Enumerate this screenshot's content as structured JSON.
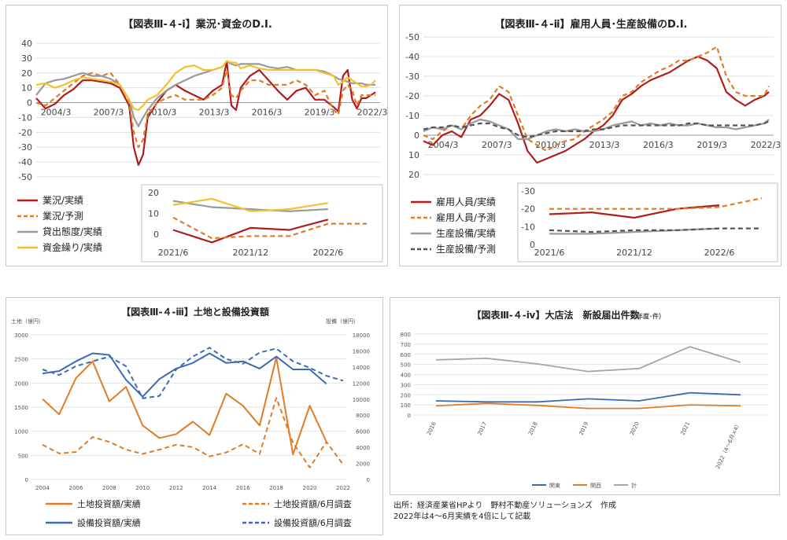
{
  "source_note": {
    "line1": "出所：経済産業省HPより　野村不動産ソリューションズ　作成",
    "line2": "2022年は4～6月実績を4倍にして記載"
  },
  "chart_data": [
    {
      "id": "c1",
      "type": "line",
      "title": "【図表Ⅲ-４-ⅰ】業況･資金のD.I.",
      "x_ticks": [
        "2004/3",
        "2007/3",
        "2010/3",
        "2013/3",
        "2016/3",
        "2019/3",
        "2022/3"
      ],
      "y_ticks": [
        "40",
        "30",
        "20",
        "10",
        "0",
        "-10",
        "-20",
        "-30",
        "-40",
        "-50"
      ],
      "ylim": [
        -50,
        40
      ],
      "x": [
        2004.0,
        2004.5,
        2005.0,
        2005.5,
        2006.0,
        2006.5,
        2007.0,
        2007.5,
        2008.0,
        2008.5,
        2009.0,
        2009.25,
        2009.5,
        2009.75,
        2010.0,
        2010.5,
        2011.0,
        2011.5,
        2012.0,
        2012.5,
        2013.0,
        2013.5,
        2014.0,
        2014.25,
        2014.5,
        2014.75,
        2015.0,
        2015.5,
        2016.0,
        2016.5,
        2017.0,
        2017.5,
        2018.0,
        2018.5,
        2019.0,
        2019.5,
        2020.0,
        2020.25,
        2020.5,
        2020.75,
        2021.0,
        2021.25,
        2021.5,
        2021.75,
        2022.0,
        2022.25
      ],
      "series": [
        {
          "name": "業況/実績",
          "color": "#b01c1c",
          "dash": "",
          "values": [
            3,
            -4,
            -1,
            5,
            9,
            15,
            15,
            14,
            13,
            10,
            -2,
            -30,
            -42,
            -35,
            -10,
            0,
            8,
            12,
            8,
            5,
            2,
            8,
            12,
            28,
            -2,
            -5,
            10,
            18,
            22,
            15,
            8,
            2,
            8,
            10,
            2,
            2,
            -3,
            -6,
            18,
            22,
            2,
            -4,
            3,
            3,
            5,
            7
          ]
        },
        {
          "name": "業況/予測",
          "color": "#e07b27",
          "dash": "6,4",
          "values": [
            0,
            -2,
            3,
            8,
            13,
            18,
            20,
            18,
            20,
            12,
            0,
            -20,
            -30,
            -25,
            -8,
            0,
            3,
            5,
            2,
            2,
            2,
            5,
            10,
            22,
            5,
            3,
            8,
            15,
            15,
            12,
            12,
            12,
            15,
            12,
            5,
            8,
            -5,
            -8,
            8,
            12,
            8,
            -2,
            5,
            5,
            5,
            5
          ]
        },
        {
          "name": "貸出態度/実績",
          "color": "#9a9a9a",
          "dash": "",
          "values": [
            5,
            13,
            15,
            16,
            18,
            20,
            18,
            18,
            16,
            12,
            2,
            -10,
            -16,
            -10,
            -5,
            3,
            8,
            12,
            15,
            18,
            20,
            22,
            24,
            28,
            26,
            25,
            26,
            26,
            26,
            24,
            23,
            24,
            22,
            22,
            22,
            21,
            18,
            16,
            15,
            14,
            13,
            13,
            13,
            12,
            12,
            12
          ]
        },
        {
          "name": "資金繰り/実績",
          "color": "#f2c12e",
          "dash": "",
          "values": [
            12,
            13,
            10,
            12,
            15,
            17,
            16,
            15,
            14,
            12,
            2,
            -4,
            -5,
            -2,
            2,
            5,
            12,
            20,
            24,
            25,
            22,
            22,
            24,
            28,
            27,
            27,
            23,
            25,
            23,
            22,
            22,
            22,
            22,
            22,
            22,
            20,
            18,
            12,
            14,
            17,
            15,
            13,
            11,
            11,
            12,
            15
          ]
        }
      ],
      "inset": {
        "x_ticks": [
          "2021/6",
          "2021/12",
          "2022/6"
        ],
        "y_ticks": [
          "20",
          "10",
          "0"
        ],
        "ylim": [
          -5,
          20
        ],
        "x": [
          0,
          1,
          2,
          3,
          4,
          5
        ],
        "series": [
          {
            "name": "業況/実績",
            "values": [
              2,
              -4,
              3,
              2,
              7,
              null
            ]
          },
          {
            "name": "業況/予測",
            "values": [
              8,
              -2,
              -1,
              -1,
              5,
              5
            ]
          },
          {
            "name": "貸出態度/実績",
            "values": [
              16,
              13,
              12,
              11,
              12,
              null
            ]
          },
          {
            "name": "資金繰り/実績",
            "values": [
              14,
              17,
              11,
              12,
              15,
              null
            ]
          }
        ]
      }
    },
    {
      "id": "c2",
      "type": "line",
      "title": "【図表Ⅲ-４-ⅱ】雇用人員･生産設備のD.I.",
      "x_ticks": [
        "2004/3",
        "2007/3",
        "2010/3",
        "2013/3",
        "2016/3",
        "2019/3",
        "2022/3"
      ],
      "y_ticks": [
        "-50",
        "-40",
        "-30",
        "-20",
        "-10",
        "0",
        "10",
        "20"
      ],
      "ylim": [
        20,
        -50
      ],
      "x": [
        2004.0,
        2004.5,
        2005.0,
        2005.5,
        2006.0,
        2006.5,
        2007.0,
        2007.5,
        2008.0,
        2008.5,
        2009.0,
        2009.5,
        2010.0,
        2010.5,
        2011.0,
        2011.5,
        2012.0,
        2012.5,
        2013.0,
        2013.5,
        2014.0,
        2014.5,
        2015.0,
        2015.5,
        2016.0,
        2016.5,
        2017.0,
        2017.5,
        2018.0,
        2018.5,
        2019.0,
        2019.5,
        2020.0,
        2020.5,
        2021.0,
        2021.5,
        2022.0,
        2022.25
      ],
      "series": [
        {
          "name": "雇用人員/実績",
          "color": "#b01c1c",
          "dash": "",
          "values": [
            3,
            5,
            0,
            -2,
            1,
            -8,
            -10,
            -15,
            -21,
            -18,
            -6,
            8,
            14,
            12,
            10,
            8,
            5,
            2,
            -2,
            -5,
            -10,
            -18,
            -21,
            -25,
            -28,
            -30,
            -32,
            -35,
            -38,
            -40,
            -38,
            -34,
            -22,
            -18,
            -15,
            -18,
            -20,
            -22
          ]
        },
        {
          "name": "雇用人員/予測",
          "color": "#e07b27",
          "dash": "6,4",
          "values": [
            0,
            2,
            -2,
            -5,
            -3,
            -10,
            -15,
            -18,
            -25,
            -22,
            -10,
            2,
            5,
            8,
            5,
            3,
            2,
            -2,
            -5,
            -8,
            -12,
            -20,
            -22,
            -27,
            -30,
            -33,
            -35,
            -38,
            -38,
            -40,
            -42,
            -45,
            -30,
            -22,
            -20,
            -20,
            -20,
            -25
          ]
        },
        {
          "name": "生産設備/実績",
          "color": "#9a9a9a",
          "dash": "",
          "values": [
            -2,
            -4,
            -3,
            -5,
            -3,
            -6,
            -8,
            -7,
            -5,
            -3,
            2,
            2,
            0,
            -2,
            -3,
            -2,
            -3,
            -2,
            -2,
            -3,
            -5,
            -6,
            -7,
            -5,
            -6,
            -5,
            -6,
            -5,
            -5,
            -6,
            -5,
            -4,
            -4,
            -3,
            -4,
            -5,
            -6,
            -8
          ]
        },
        {
          "name": "生産設備/予測",
          "color": "#555555",
          "dash": "6,4",
          "values": [
            -3,
            -4,
            -4,
            -5,
            -4,
            -5,
            -6,
            -6,
            -4,
            -3,
            0,
            1,
            0,
            -1,
            -2,
            -2,
            -2,
            -2,
            -3,
            -3,
            -4,
            -5,
            -5,
            -5,
            -5,
            -5,
            -5,
            -5,
            -6,
            -6,
            -5,
            -5,
            -5,
            -5,
            -5,
            -5,
            -6,
            -7
          ]
        }
      ],
      "inset": {
        "x_ticks": [
          "2021/6",
          "2021/12",
          "2022/6"
        ],
        "y_ticks": [
          "-30",
          "-20",
          "-10",
          "0"
        ],
        "ylim": [
          0,
          -30
        ],
        "x": [
          0,
          1,
          2,
          3,
          4,
          5
        ],
        "series": [
          {
            "name": "雇用人員/実績",
            "values": [
              -17,
              -18,
              -15,
              -20,
              -22,
              null
            ]
          },
          {
            "name": "雇用人員/予測",
            "values": [
              -20,
              -20,
              -20,
              -20,
              -21,
              -26
            ]
          },
          {
            "name": "生産設備/実績",
            "values": [
              -6,
              -6,
              -7,
              -8,
              -9,
              null
            ]
          },
          {
            "name": "生産設備/予測",
            "values": [
              -8,
              -7,
              -8,
              -8,
              -9,
              -9
            ]
          }
        ]
      }
    },
    {
      "id": "c3",
      "type": "line",
      "title": "【図表Ⅲ-４-ⅲ】土地と設備投資額",
      "ylabel_left": "土地（億円）",
      "ylabel_right": "設備（億円）",
      "x_ticks": [
        "2004",
        "2006",
        "2008",
        "2010",
        "2012",
        "2014",
        "2016",
        "2018",
        "2020",
        "2022"
      ],
      "y_left_ticks": [
        "3000",
        "2500",
        "2000",
        "1500",
        "1000",
        "500",
        "0"
      ],
      "y_right_ticks": [
        "18000",
        "16000",
        "14000",
        "12000",
        "10000",
        "8000",
        "6000",
        "4000",
        "2000",
        "0"
      ],
      "ylim_left": [
        0,
        3000
      ],
      "ylim_right": [
        0,
        18000
      ],
      "x": [
        2004,
        2005,
        2006,
        2007,
        2008,
        2009,
        2010,
        2011,
        2012,
        2013,
        2014,
        2015,
        2016,
        2017,
        2018,
        2019,
        2020,
        2021,
        2022
      ],
      "series": [
        {
          "name": "土地投資額/実績",
          "axis": "left",
          "color": "#e07b27",
          "dash": "",
          "values": [
            1670,
            1350,
            2100,
            2450,
            1620,
            1920,
            1120,
            860,
            940,
            1200,
            920,
            1780,
            1530,
            1120,
            2530,
            520,
            1530,
            780,
            null
          ]
        },
        {
          "name": "土地投資額/6月調査",
          "axis": "left",
          "color": "#e07b27",
          "dash": "6,4",
          "values": [
            720,
            540,
            570,
            880,
            780,
            620,
            530,
            620,
            720,
            670,
            480,
            560,
            730,
            530,
            1690,
            760,
            250,
            780,
            310
          ]
        },
        {
          "name": "設備投資額/実績",
          "axis": "right",
          "color": "#3b6bb5",
          "dash": "",
          "values": [
            13200,
            13500,
            14700,
            15700,
            15500,
            12400,
            10300,
            12500,
            13800,
            14500,
            15700,
            14500,
            14700,
            13800,
            15300,
            13700,
            13700,
            11900,
            null
          ]
        },
        {
          "name": "設備投資額/6月調査",
          "axis": "right",
          "color": "#3b6bb5",
          "dash": "6,4",
          "values": [
            13700,
            13000,
            14100,
            14700,
            15300,
            14100,
            10100,
            10400,
            13700,
            15300,
            16400,
            15000,
            14400,
            15800,
            16300,
            14700,
            13900,
            12900,
            12300
          ]
        }
      ]
    },
    {
      "id": "c4",
      "type": "line",
      "title": "【図表Ⅲ-４-ⅳ】大店法　新設届出件数",
      "title_suffix": "（年度･件）",
      "categories": [
        "2016",
        "2017",
        "2018",
        "2019",
        "2020",
        "2021",
        "2022（4～6月×4）"
      ],
      "y_ticks": [
        "800",
        "700",
        "600",
        "500",
        "400",
        "300",
        "200",
        "100",
        "0"
      ],
      "ylim": [
        0,
        800
      ],
      "series": [
        {
          "name": "関東",
          "color": "#3b6bb5",
          "values": [
            140,
            130,
            130,
            160,
            140,
            220,
            200
          ]
        },
        {
          "name": "関西",
          "color": "#e07b27",
          "values": [
            90,
            115,
            95,
            65,
            65,
            100,
            90
          ]
        },
        {
          "name": "計",
          "color": "#a5a5a5",
          "values": [
            545,
            560,
            505,
            430,
            460,
            675,
            520
          ]
        }
      ]
    }
  ]
}
